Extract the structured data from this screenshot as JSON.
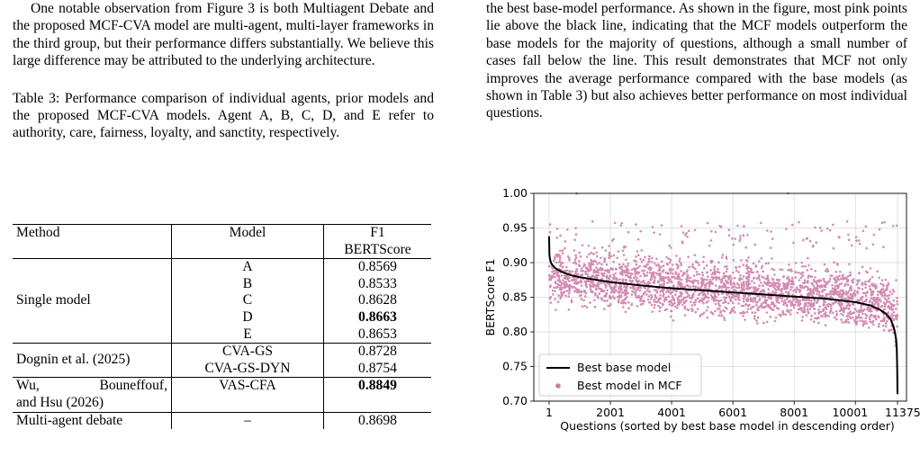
{
  "left": {
    "paragraph": "One notable observation from Figure 3 is both Multiagent Debate and the proposed MCF-CVA model are multi-agent, multi-layer frameworks in the third group, but their performance differs substantially. We believe this large difference may be attributed to the underlying architecture.",
    "caption": "Table 3: Performance comparison of individual agents, prior models and the proposed MCF-CVA models. Agent A, B, C, D, and E refer to authority, care, fairness, loyalty, and sanctity, respectively."
  },
  "table": {
    "headers": {
      "method": "Method",
      "model": "Model",
      "f1_line1": "F1",
      "f1_line2": "BERTScore"
    },
    "single_group": "Single model",
    "single_rows": [
      {
        "model": "A",
        "score": "0.8569"
      },
      {
        "model": "B",
        "score": "0.8533"
      },
      {
        "model": "C",
        "score": "0.8628"
      },
      {
        "model": "D",
        "score": "0.8663"
      },
      {
        "model": "E",
        "score": "0.8653"
      }
    ],
    "dognin_group": "Dognin et al. (2025)",
    "dognin_rows": [
      {
        "model": "CVA-GS",
        "score": "0.8728"
      },
      {
        "model": "CVA-GS-DYN",
        "score": "0.8754"
      }
    ],
    "wu_group_line1": "Wu, Bouneffouf,",
    "wu_group_line2": "and Hsu (2026)",
    "wu_model": "VAS-CFA",
    "wu_score": "0.8849",
    "mad_group": "Multi-agent debate",
    "mad_model": "–",
    "mad_score": "0.8698"
  },
  "right": {
    "paragraph": "the best base-model performance. As shown in the figure, most pink points lie above the black line, indicating that the MCF models outperform the base models for the majority of questions, although a small number of cases fall below the line. This result demonstrates that MCF not only improves the average performance compared with the base models (as shown in Table 3) but also achieves better performance on most individual questions."
  },
  "chart_data": {
    "type": "scatter",
    "xlabel": "Questions (sorted by best base model in descending order)",
    "ylabel": "BERTScore F1",
    "xlim": [
      1,
      11375
    ],
    "ylim": [
      0.7,
      1.0
    ],
    "xticks": [
      "1",
      "2001",
      "4001",
      "6001",
      "8001",
      "10001",
      "11375"
    ],
    "yticks": [
      "0.70",
      "0.75",
      "0.80",
      "0.85",
      "0.90",
      "0.95",
      "1.00"
    ],
    "grid": true,
    "legend_position": "lower-left",
    "series": [
      {
        "name": "Best base model",
        "kind": "line",
        "color": "#000000",
        "x": [
          1,
          10,
          30,
          60,
          100,
          200,
          400,
          700,
          1001,
          2001,
          3001,
          4001,
          5001,
          6001,
          7001,
          8001,
          9001,
          10001,
          10501,
          10801,
          11001,
          11151,
          11251,
          11301,
          11331,
          11351,
          11365,
          11375
        ],
        "y": [
          0.938,
          0.912,
          0.905,
          0.9,
          0.897,
          0.892,
          0.887,
          0.882,
          0.879,
          0.872,
          0.867,
          0.863,
          0.86,
          0.857,
          0.854,
          0.851,
          0.848,
          0.843,
          0.838,
          0.832,
          0.826,
          0.818,
          0.807,
          0.797,
          0.788,
          0.775,
          0.745,
          0.71
        ]
      },
      {
        "name": "Best model in MCF",
        "kind": "scatter",
        "color": "#cc79a7"
      }
    ]
  }
}
